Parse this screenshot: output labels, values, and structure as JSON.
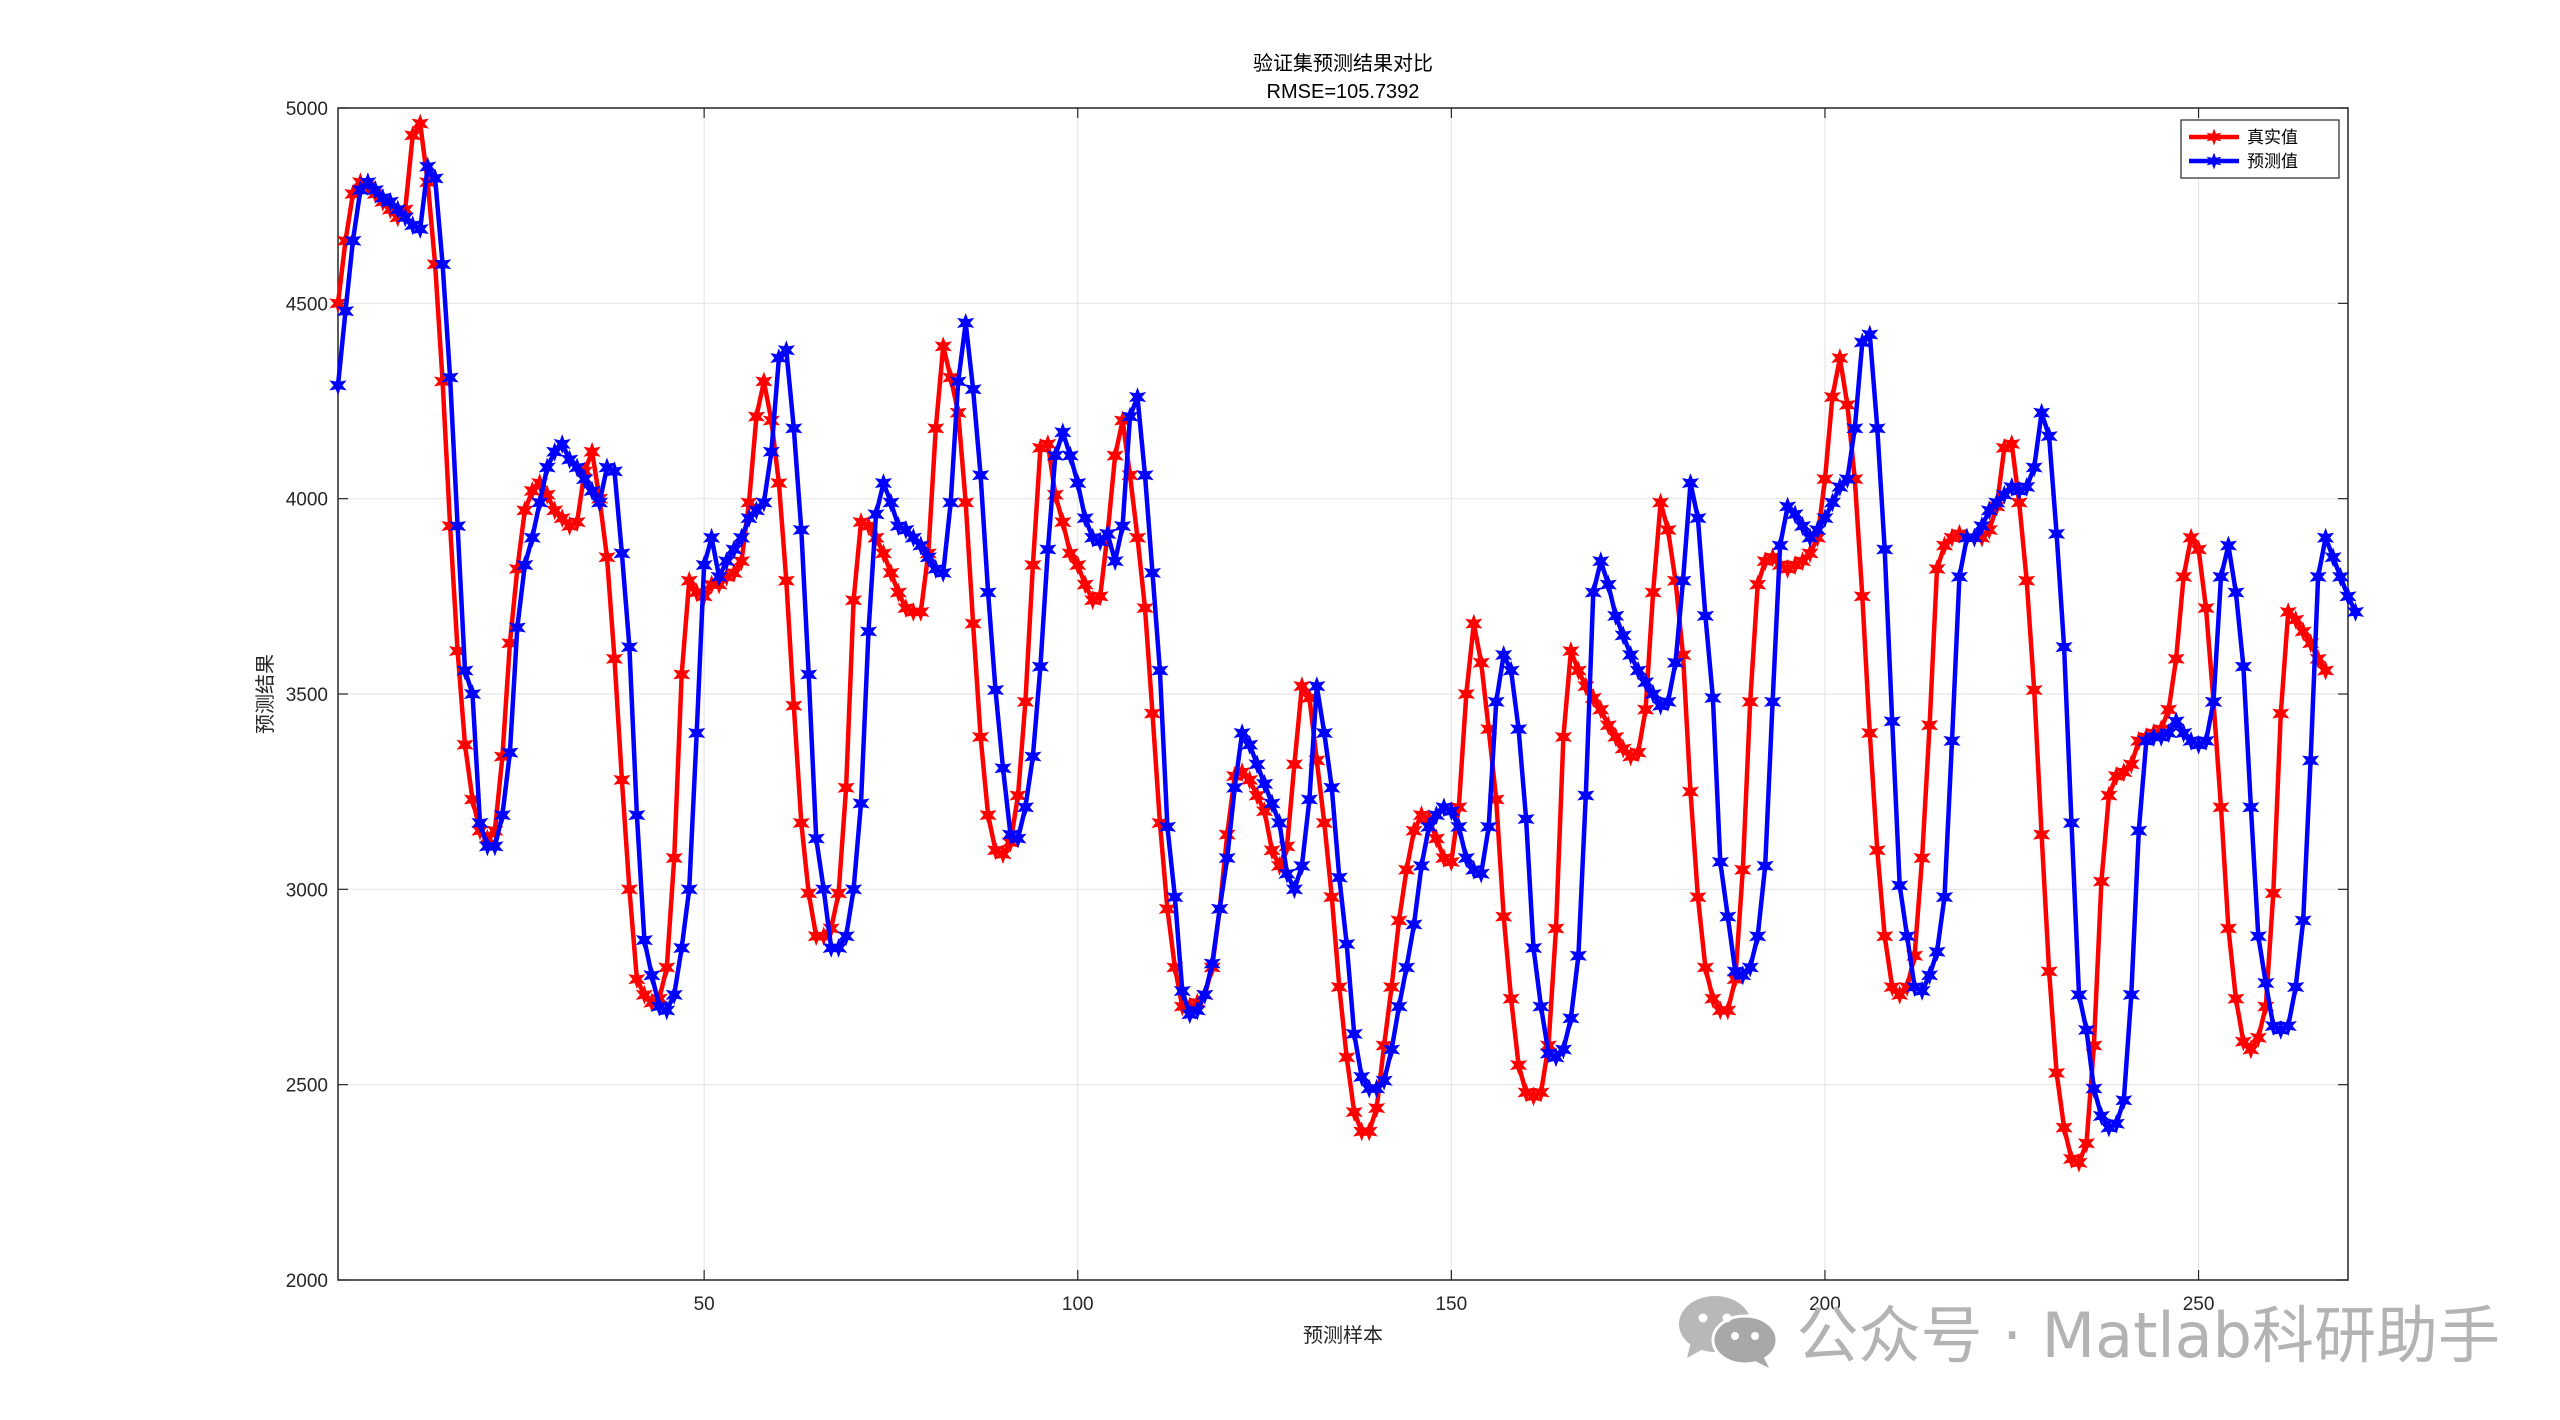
{
  "chart_data": {
    "type": "line",
    "title": "验证集预测结果对比",
    "subtitle": "RMSE=105.7392",
    "xlabel": "预测样本",
    "ylabel": "预测结果",
    "xlim": [
      1,
      270
    ],
    "ylim": [
      2000,
      5000
    ],
    "xticks": [
      50,
      100,
      150,
      200,
      250
    ],
    "yticks": [
      2000,
      2500,
      3000,
      3500,
      4000,
      4500,
      5000
    ],
    "grid": true,
    "legend_position": "top-right",
    "series": [
      {
        "name": "真实值",
        "color": "#ff0000",
        "values": [
          4500,
          4660,
          4780,
          4810,
          4800,
          4780,
          4760,
          4740,
          4720,
          4740,
          4930,
          4960,
          4810,
          4600,
          4300,
          3930,
          3610,
          3370,
          3230,
          3150,
          3130,
          3150,
          3340,
          3630,
          3820,
          3970,
          4020,
          4040,
          4010,
          3970,
          3950,
          3930,
          3940,
          4070,
          4120,
          4000,
          3850,
          3590,
          3280,
          3000,
          2770,
          2730,
          2710,
          2720,
          2800,
          3080,
          3550,
          3790,
          3760,
          3750,
          3780,
          3780,
          3800,
          3810,
          3840,
          3990,
          4210,
          4300,
          4200,
          4040,
          3790,
          3470,
          3170,
          2990,
          2880,
          2880,
          2900,
          2990,
          3260,
          3740,
          3940,
          3930,
          3900,
          3860,
          3810,
          3760,
          3720,
          3710,
          3710,
          3860,
          4180,
          4390,
          4310,
          4220,
          3990,
          3680,
          3390,
          3190,
          3100,
          3090,
          3120,
          3240,
          3480,
          3830,
          4130,
          4140,
          4010,
          3940,
          3860,
          3830,
          3780,
          3740,
          3750,
          3910,
          4110,
          4200,
          4060,
          3900,
          3720,
          3450,
          3170,
          2950,
          2800,
          2700,
          2700,
          2710,
          2730,
          2800,
          2950,
          3140,
          3290,
          3300,
          3280,
          3240,
          3200,
          3100,
          3060,
          3110,
          3320,
          3520,
          3490,
          3330,
          3170,
          2980,
          2750,
          2570,
          2430,
          2380,
          2380,
          2440,
          2600,
          2750,
          2920,
          3050,
          3150,
          3190,
          3180,
          3130,
          3080,
          3070,
          3210,
          3500,
          3680,
          3580,
          3410,
          3230,
          2930,
          2720,
          2550,
          2480,
          2470,
          2480,
          2600,
          2900,
          3390,
          3610,
          3560,
          3520,
          3490,
          3460,
          3420,
          3390,
          3360,
          3340,
          3350,
          3460,
          3760,
          3990,
          3920,
          3790,
          3600,
          3250,
          2980,
          2800,
          2720,
          2690,
          2690,
          2770,
          3050,
          3480,
          3780,
          3840,
          3850,
          3830,
          3820,
          3830,
          3840,
          3860,
          3900,
          4050,
          4260,
          4360,
          4240,
          4050,
          3750,
          3400,
          3100,
          2880,
          2750,
          2730,
          2750,
          2830,
          3080,
          3420,
          3820,
          3880,
          3900,
          3910,
          3900,
          3900,
          3900,
          3920,
          3980,
          4130,
          4140,
          3990,
          3790,
          3510,
          3140,
          2790,
          2530,
          2390,
          2310,
          2300,
          2350,
          2600,
          3020,
          3240,
          3290,
          3300,
          3320,
          3380,
          3390,
          3400,
          3410,
          3460,
          3590,
          3800,
          3900,
          3870,
          3720,
          3480,
          3210,
          2900,
          2720,
          2610,
          2590,
          2620,
          2700,
          2990,
          3450,
          3710,
          3690,
          3660,
          3630,
          3590,
          3560
        ]
      },
      {
        "name": "预测值",
        "color": "#0000ff",
        "values": [
          4290,
          4480,
          4660,
          4790,
          4810,
          4790,
          4770,
          4760,
          4740,
          4720,
          4700,
          4690,
          4850,
          4820,
          4600,
          4310,
          3930,
          3560,
          3500,
          3170,
          3110,
          3110,
          3190,
          3350,
          3670,
          3830,
          3900,
          3990,
          4080,
          4120,
          4140,
          4100,
          4080,
          4050,
          4020,
          3990,
          4080,
          4070,
          3860,
          3620,
          3190,
          2870,
          2780,
          2700,
          2690,
          2730,
          2850,
          3000,
          3400,
          3830,
          3900,
          3800,
          3840,
          3870,
          3900,
          3950,
          3970,
          3990,
          4120,
          4360,
          4380,
          4180,
          3920,
          3550,
          3130,
          3000,
          2850,
          2850,
          2880,
          3000,
          3220,
          3660,
          3960,
          4040,
          3990,
          3930,
          3920,
          3900,
          3880,
          3850,
          3820,
          3810,
          3990,
          4300,
          4450,
          4280,
          4060,
          3760,
          3510,
          3310,
          3140,
          3130,
          3210,
          3340,
          3570,
          3870,
          4110,
          4170,
          4110,
          4040,
          3950,
          3900,
          3890,
          3910,
          3840,
          3930,
          4210,
          4260,
          4060,
          3810,
          3560,
          3160,
          2980,
          2740,
          2680,
          2690,
          2730,
          2810,
          2950,
          3080,
          3260,
          3400,
          3370,
          3320,
          3270,
          3220,
          3170,
          3040,
          3000,
          3060,
          3230,
          3520,
          3400,
          3260,
          3030,
          2860,
          2630,
          2520,
          2490,
          2490,
          2510,
          2590,
          2700,
          2800,
          2910,
          3060,
          3160,
          3190,
          3210,
          3200,
          3160,
          3080,
          3050,
          3040,
          3160,
          3480,
          3600,
          3560,
          3410,
          3180,
          2850,
          2700,
          2580,
          2570,
          2590,
          2670,
          2830,
          3240,
          3760,
          3840,
          3780,
          3700,
          3650,
          3600,
          3560,
          3530,
          3500,
          3470,
          3480,
          3580,
          3790,
          4040,
          3950,
          3700,
          3490,
          3070,
          2930,
          2790,
          2780,
          2800,
          2880,
          3060,
          3480,
          3880,
          3980,
          3960,
          3930,
          3900,
          3920,
          3950,
          3990,
          4030,
          4050,
          4180,
          4400,
          4420,
          4180,
          3870,
          3430,
          3010,
          2880,
          2750,
          2740,
          2780,
          2840,
          2980,
          3380,
          3800,
          3900,
          3900,
          3930,
          3970,
          3990,
          4010,
          4030,
          4020,
          4030,
          4080,
          4220,
          4160,
          3910,
          3620,
          3170,
          2730,
          2640,
          2490,
          2420,
          2390,
          2400,
          2460,
          2730,
          3150,
          3380,
          3390,
          3390,
          3400,
          3430,
          3400,
          3380,
          3370,
          3380,
          3480,
          3800,
          3880,
          3760,
          3570,
          3210,
          2880,
          2760,
          2650,
          2640,
          2650,
          2750,
          2920,
          3330,
          3800,
          3900,
          3850,
          3800,
          3750,
          3710
        ]
      }
    ]
  },
  "watermark": {
    "text": "公众号 · Matlab科研助手",
    "icon": "wechat-icon"
  }
}
